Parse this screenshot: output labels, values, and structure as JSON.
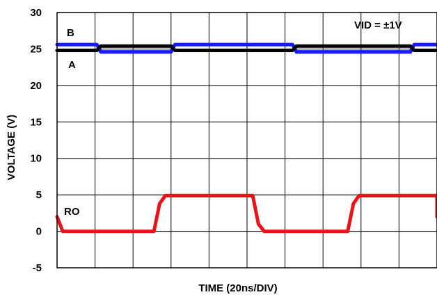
{
  "chart_data": {
    "type": "line",
    "xlabel": "TIME (20ns/DIV)",
    "ylabel": "VOLTAGE (V)",
    "ylim": [
      -5,
      30
    ],
    "yticks": [
      "30",
      "25",
      "20",
      "15",
      "10",
      "5",
      "0",
      "-5"
    ],
    "x_divisions": 10,
    "grid": true,
    "annotations": {
      "condition": "VID = ±1V",
      "label_b": "B",
      "label_a": "A",
      "label_ro": "RO"
    },
    "series": [
      {
        "name": "B",
        "color": "#1a1aff",
        "x": [
          0,
          1.05,
          1.15,
          3.0,
          3.1,
          6.2,
          6.3,
          9.3,
          9.4,
          10
        ],
        "y": [
          25.6,
          25.6,
          24.6,
          24.6,
          25.6,
          25.6,
          24.6,
          24.6,
          25.6,
          25.6
        ]
      },
      {
        "name": "A",
        "color": "#000000",
        "x": [
          0,
          1.05,
          1.15,
          3.0,
          3.1,
          6.2,
          6.3,
          9.3,
          9.4,
          10
        ],
        "y": [
          24.8,
          24.8,
          25.4,
          25.4,
          24.8,
          24.8,
          25.4,
          25.4,
          24.8,
          24.8
        ]
      },
      {
        "name": "RO",
        "color": "#e8141a",
        "x": [
          0,
          0.15,
          0.3,
          2.4,
          2.55,
          2.7,
          2.85,
          5.0,
          5.15,
          5.3,
          5.45,
          7.5,
          7.65,
          7.8,
          7.95,
          10.0,
          10.2
        ],
        "y": [
          2.0,
          0.0,
          0.0,
          0.0,
          0.0,
          3.8,
          4.9,
          4.9,
          4.9,
          1.0,
          0.0,
          0.0,
          0.0,
          3.8,
          4.9,
          4.9,
          2.0
        ]
      }
    ]
  }
}
